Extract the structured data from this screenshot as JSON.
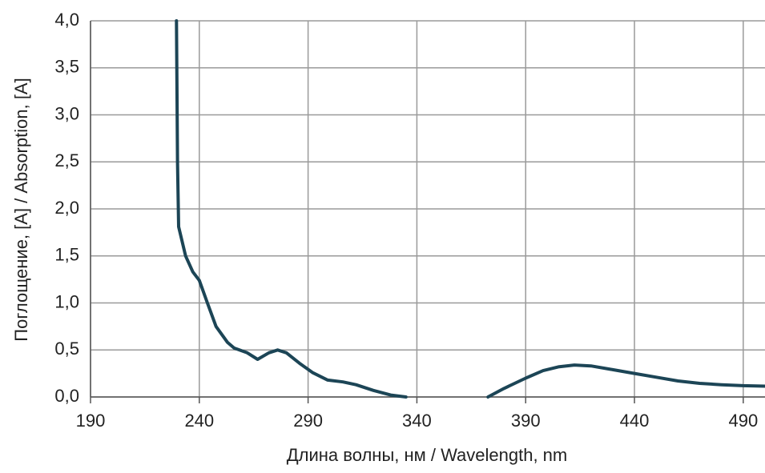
{
  "chart_data": {
    "type": "line",
    "xlabel": "Длина волны, нм / Wavelength, nm",
    "ylabel": "Поглощение, [A] / Absorption, [A]",
    "x": [
      229.5,
      230,
      230.5,
      233.7,
      237,
      240,
      243.7,
      247.7,
      253,
      256,
      262,
      266.8,
      272,
      276,
      280,
      286,
      292,
      299,
      306,
      312,
      320,
      328,
      335,
      null,
      372.7,
      380,
      390,
      398,
      405,
      412.4,
      420,
      430,
      440,
      450,
      460,
      470,
      480,
      490,
      500
    ],
    "color": "#1c4556",
    "values": [
      4.0,
      2.5,
      1.81,
      1.5,
      1.33,
      1.24,
      1.0,
      0.75,
      0.58,
      0.52,
      0.47,
      0.4,
      0.47,
      0.5,
      0.47,
      0.36,
      0.26,
      0.18,
      0.16,
      0.13,
      0.07,
      0.02,
      0.0,
      null,
      0.0,
      0.09,
      0.2,
      0.28,
      0.32,
      0.34,
      0.33,
      0.29,
      0.25,
      0.21,
      0.17,
      0.145,
      0.13,
      0.12,
      0.115
    ],
    "xlim": [
      190,
      500
    ],
    "ylim": [
      0,
      4
    ],
    "xticks": [
      190,
      240,
      290,
      340,
      390,
      440,
      490
    ],
    "yticks": [
      {
        "value": 0,
        "label": "0,0"
      },
      {
        "value": 0.5,
        "label": "0,5"
      },
      {
        "value": 1,
        "label": "1,0"
      },
      {
        "value": 1.5,
        "label": "1,5"
      },
      {
        "value": 2,
        "label": "2,0"
      },
      {
        "value": 2.5,
        "label": "2,5"
      },
      {
        "value": 3,
        "label": "3,0"
      },
      {
        "value": 3.5,
        "label": "3,5"
      },
      {
        "value": 4,
        "label": "4,0"
      }
    ],
    "grid": true
  }
}
